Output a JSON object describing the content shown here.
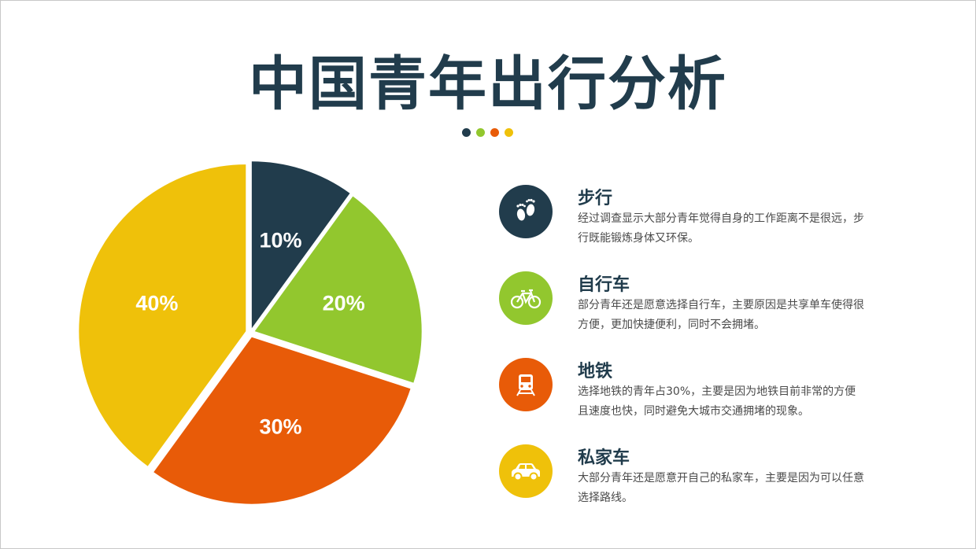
{
  "title": "中国青年出行分析",
  "accent_dots": [
    "#213c4c",
    "#92c72e",
    "#e85b08",
    "#efc10a"
  ],
  "chart_data": {
    "type": "pie",
    "title": "中国青年出行分析",
    "slices": [
      {
        "name": "步行",
        "value": 10,
        "label": "10%",
        "color": "#213c4c"
      },
      {
        "name": "自行车",
        "value": 20,
        "label": "20%",
        "color": "#92c72e"
      },
      {
        "name": "地铁",
        "value": 30,
        "label": "30%",
        "color": "#e85b08"
      },
      {
        "name": "私家车",
        "value": 40,
        "label": "40%",
        "color": "#efc10a"
      }
    ]
  },
  "legend": [
    {
      "title": "步行",
      "icon": "footprints-icon",
      "color": "#213c4c",
      "desc": "经过调查显示大部分青年觉得自身的工作距离不是很远，步行既能锻炼身体又环保。"
    },
    {
      "title": "自行车",
      "icon": "bicycle-icon",
      "color": "#92c72e",
      "desc": "部分青年还是愿意选择自行车，主要原因是共享单车使得很方便，更加快捷便利，同时不会拥堵。"
    },
    {
      "title": "地铁",
      "icon": "train-icon",
      "color": "#e85b08",
      "desc": "选择地铁的青年占30%，主要是因为地铁目前非常的方便且速度也快，同时避免大城市交通拥堵的现象。"
    },
    {
      "title": "私家车",
      "icon": "car-icon",
      "color": "#efc10a",
      "desc": "大部分青年还是愿意开自己的私家车，主要是因为可以任意选择路线。"
    }
  ]
}
